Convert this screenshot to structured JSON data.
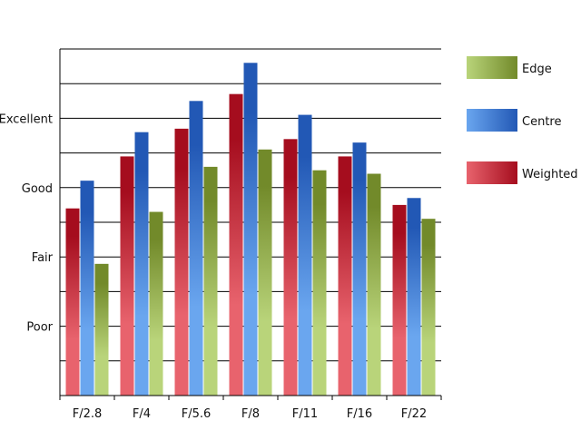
{
  "chart_data": {
    "type": "bar",
    "title": "",
    "xlabel": "",
    "ylabel": "",
    "categories": [
      "F/2.8",
      "F/4",
      "F/5.6",
      "F/8",
      "F/11",
      "F/16",
      "F/22"
    ],
    "y_ticks": [
      {
        "label": "Poor",
        "value": 2
      },
      {
        "label": "Fair",
        "value": 4
      },
      {
        "label": "Good",
        "value": 6
      },
      {
        "label": "Excellent",
        "value": 8
      }
    ],
    "ylim": [
      0,
      10
    ],
    "grid": true,
    "legend_position": "right",
    "series": [
      {
        "name": "Weighted",
        "values": [
          5.4,
          6.9,
          7.7,
          8.7,
          7.4,
          6.9,
          5.5
        ],
        "colors": [
          "#e8636d",
          "#a50d1e"
        ]
      },
      {
        "name": "Centre",
        "values": [
          6.2,
          7.6,
          8.5,
          9.6,
          8.1,
          7.3,
          5.7
        ],
        "colors": [
          "#6aa6ef",
          "#2258b5"
        ]
      },
      {
        "name": "Edge",
        "values": [
          3.8,
          5.3,
          6.6,
          7.1,
          6.5,
          6.4,
          5.1
        ],
        "colors": [
          "#b9d47a",
          "#728a2a"
        ]
      }
    ],
    "legend_order": [
      "Edge",
      "Centre",
      "Weighted"
    ]
  }
}
